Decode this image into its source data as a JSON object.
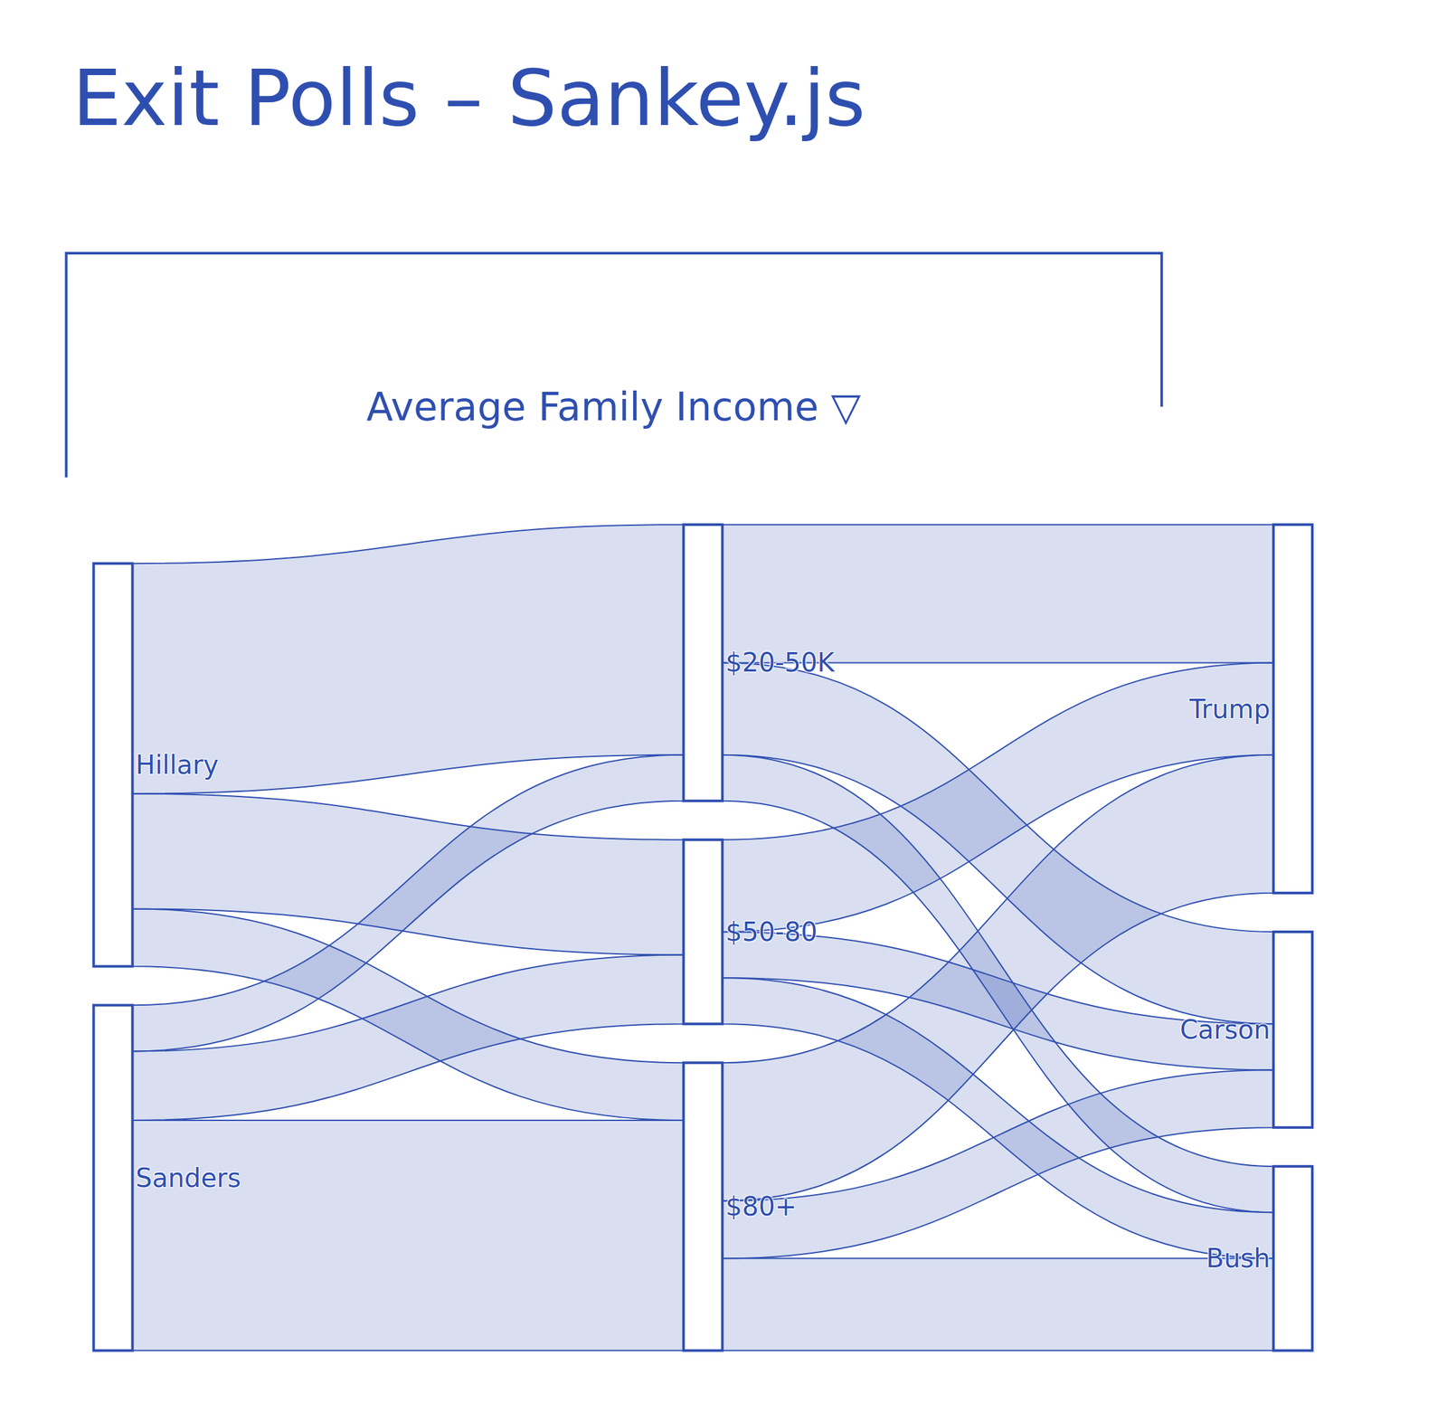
{
  "chart_data": {
    "type": "sankey",
    "title": "Exit Polls – Sankey.js",
    "subtitle": "Average Family Income ▽",
    "color": "#2f4fb0",
    "nodes": [
      "Sanders",
      "Hillary",
      "$80+",
      "$50-80",
      "$20-50K",
      "Trump",
      "Bush",
      "Carson"
    ],
    "links": [
      {
        "source": "Sanders",
        "target": "$80+",
        "value": 20
      },
      {
        "source": "Sanders",
        "target": "$50-80",
        "value": 6
      },
      {
        "source": "Sanders",
        "target": "$20-50K",
        "value": 4
      },
      {
        "source": "Hillary",
        "target": "$80+",
        "value": 5
      },
      {
        "source": "Hillary",
        "target": "$50-80",
        "value": 10
      },
      {
        "source": "Hillary",
        "target": "$20-50K",
        "value": 20
      },
      {
        "source": "$80+",
        "target": "Trump",
        "value": 12
      },
      {
        "source": "$80+",
        "target": "Bush",
        "value": 8
      },
      {
        "source": "$80+",
        "target": "Carson",
        "value": 5
      },
      {
        "source": "$50-80",
        "target": "Trump",
        "value": 8
      },
      {
        "source": "$50-80",
        "target": "Bush",
        "value": 4
      },
      {
        "source": "$50-80",
        "target": "Carson",
        "value": 4
      },
      {
        "source": "$20-50K",
        "target": "Trump",
        "value": 12
      },
      {
        "source": "$20-50K",
        "target": "Bush",
        "value": 4
      },
      {
        "source": "$20-50K",
        "target": "Carson",
        "value": 8
      }
    ]
  }
}
